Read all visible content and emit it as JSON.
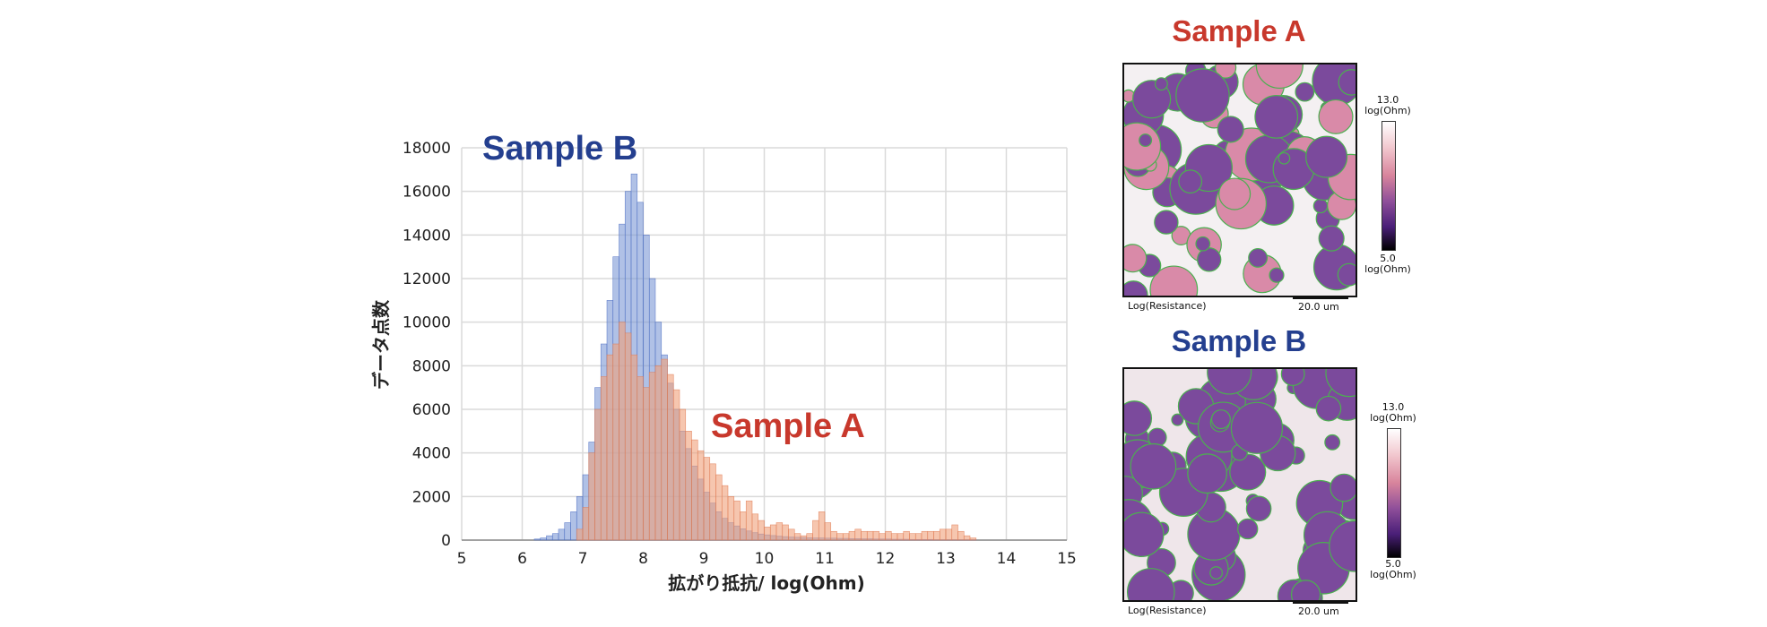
{
  "chart_data": {
    "type": "bar",
    "xlabel": "拡がり抵抗/ log(Ohm)",
    "ylabel": "データ点数",
    "xlim": [
      5,
      15
    ],
    "ylim": [
      0,
      18000
    ],
    "x_ticks": [
      "5",
      "6",
      "7",
      "8",
      "9",
      "10",
      "11",
      "12",
      "13",
      "14",
      "15"
    ],
    "y_ticks": [
      "0",
      "2000",
      "4000",
      "6000",
      "8000",
      "10000",
      "12000",
      "14000",
      "16000",
      "18000"
    ],
    "grid": true,
    "bin_width": 0.1,
    "series": [
      {
        "name": "Sample B",
        "color": "#7b97d6",
        "bin_start": 6.2,
        "values": [
          50,
          100,
          200,
          300,
          500,
          800,
          1300,
          2000,
          3000,
          4500,
          7000,
          9000,
          11000,
          13000,
          14500,
          16000,
          16800,
          15500,
          14000,
          12000,
          10000,
          8500,
          7200,
          6000,
          5000,
          4200,
          3400,
          2800,
          2200,
          1700,
          1300,
          1000,
          800,
          650,
          520,
          420,
          340,
          280,
          240,
          210,
          180,
          160,
          140,
          130,
          120,
          110,
          100,
          100,
          90,
          90,
          80,
          80,
          70,
          70,
          60,
          60,
          50,
          50,
          50,
          40,
          40,
          40,
          30,
          30,
          30,
          30,
          20,
          20,
          20,
          20,
          20,
          20,
          20
        ]
      },
      {
        "name": "Sample A",
        "color": "#f0a07a",
        "bin_start": 6.9,
        "values": [
          500,
          1500,
          4000,
          6000,
          7500,
          8500,
          9000,
          10000,
          9500,
          8500,
          7500,
          7000,
          7700,
          8000,
          8300,
          7600,
          6900,
          6000,
          5000,
          4600,
          4100,
          3800,
          3500,
          3000,
          2500,
          2000,
          1800,
          1300,
          1800,
          1200,
          900,
          600,
          700,
          800,
          700,
          500,
          300,
          200,
          300,
          900,
          1300,
          800,
          400,
          300,
          300,
          400,
          500,
          400,
          400,
          400,
          300,
          400,
          300,
          300,
          400,
          300,
          300,
          400,
          400,
          400,
          500,
          500,
          700,
          400,
          200,
          100
        ]
      }
    ],
    "annotations": [
      "Sample B",
      "Sample A"
    ]
  },
  "maps": [
    {
      "title": "Sample A",
      "colorbar_max": "13.0",
      "colorbar_max_unit": "log(Ohm)",
      "colorbar_min": "5.0",
      "colorbar_min_unit": "log(Ohm)",
      "caption": "Log(Resistance)",
      "scale": "20.0 um"
    },
    {
      "title": "Sample B",
      "colorbar_max": "13.0",
      "colorbar_max_unit": "log(Ohm)",
      "colorbar_min": "5.0",
      "colorbar_min_unit": "log(Ohm)",
      "caption": "Log(Resistance)",
      "scale": "20.0 um"
    }
  ],
  "colors": {
    "sample_a_text": "#c8382c",
    "sample_b_text": "#243f8f",
    "particle_dark": "#7b4a9c",
    "particle_pink": "#d98aa8",
    "particle_edge": "#4caf50"
  }
}
